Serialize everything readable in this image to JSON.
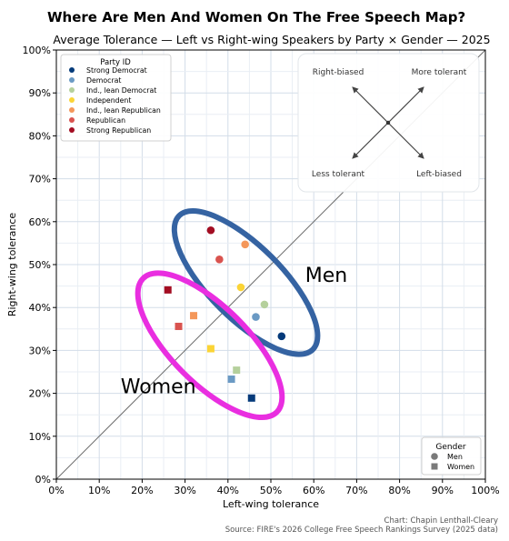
{
  "title": "Where Are Men And Women On The Free Speech Map?",
  "credit": "Chart: Chapin Lenthall-Cleary",
  "source": "Source: FIRE's 2026 College Free Speech Rankings Survey (2025 data)",
  "chart_data": {
    "type": "scatter",
    "title": "Average Tolerance — Left vs Right-wing Speakers by Party × Gender — 2025",
    "xlabel": "Left-wing tolerance",
    "ylabel": "Right-wing tolerance",
    "xlim": [
      0,
      100
    ],
    "ylim": [
      0,
      100
    ],
    "xticks": [
      0,
      10,
      20,
      30,
      40,
      50,
      60,
      70,
      80,
      90,
      100
    ],
    "yticks": [
      0,
      10,
      20,
      30,
      40,
      50,
      60,
      70,
      80,
      90,
      100
    ],
    "tick_suffix": "%",
    "grid": true,
    "diagonal_reference": true,
    "party_legend": {
      "title": "Party ID",
      "placement": "top-left",
      "entries": [
        {
          "name": "Strong Democrat",
          "color": "#053a7a"
        },
        {
          "name": "Democrat",
          "color": "#6b9ac4"
        },
        {
          "name": "Ind., lean Democrat",
          "color": "#b5d09c"
        },
        {
          "name": "Independent",
          "color": "#fbd436"
        },
        {
          "name": "Ind., lean Republican",
          "color": "#f4975a"
        },
        {
          "name": "Republican",
          "color": "#d9534f"
        },
        {
          "name": "Strong Republican",
          "color": "#a30d22"
        }
      ]
    },
    "gender_legend": {
      "title": "Gender",
      "placement": "bottom-right",
      "entries": [
        {
          "name": "Men",
          "marker": "circle"
        },
        {
          "name": "Women",
          "marker": "square"
        }
      ]
    },
    "quadrant_inset": {
      "labels": [
        "Right-biased",
        "More tolerant",
        "Less tolerant",
        "Left-biased"
      ]
    },
    "series": [
      {
        "name": "Men",
        "marker": "circle",
        "points": [
          {
            "party": "Strong Democrat",
            "x": 52.5,
            "y": 33.3
          },
          {
            "party": "Democrat",
            "x": 46.5,
            "y": 37.8
          },
          {
            "party": "Ind., lean Democrat",
            "x": 48.5,
            "y": 40.7
          },
          {
            "party": "Independent",
            "x": 43.0,
            "y": 44.7
          },
          {
            "party": "Ind., lean Republican",
            "x": 44.0,
            "y": 54.7
          },
          {
            "party": "Republican",
            "x": 38.0,
            "y": 51.2
          },
          {
            "party": "Strong Republican",
            "x": 36.0,
            "y": 58.0
          }
        ]
      },
      {
        "name": "Women",
        "marker": "square",
        "points": [
          {
            "party": "Strong Democrat",
            "x": 45.5,
            "y": 18.9
          },
          {
            "party": "Democrat",
            "x": 40.8,
            "y": 23.3
          },
          {
            "party": "Ind., lean Democrat",
            "x": 42.0,
            "y": 25.4
          },
          {
            "party": "Independent",
            "x": 36.0,
            "y": 30.4
          },
          {
            "party": "Ind., lean Republican",
            "x": 32.0,
            "y": 38.1
          },
          {
            "party": "Republican",
            "x": 28.5,
            "y": 35.6
          },
          {
            "party": "Strong Republican",
            "x": 26.0,
            "y": 44.1
          }
        ]
      }
    ],
    "annotations": [
      {
        "text": "Men",
        "color": "#3563a2",
        "x": 58,
        "y": 46
      },
      {
        "text": "Women",
        "color": "#e92ee0",
        "x": 15,
        "y": 20
      }
    ]
  }
}
